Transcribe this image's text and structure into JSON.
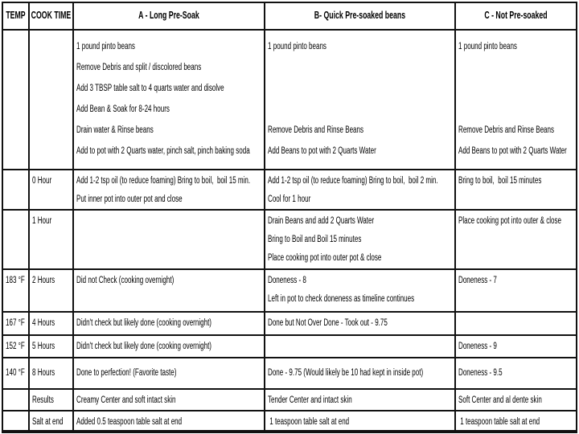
{
  "colors": {
    "border": "#111111",
    "background": "#ffffff",
    "text": "#000000"
  },
  "table": {
    "headers": {
      "temp": "TEMP",
      "cook_time": "COOK TIME",
      "col_a": "A - Long Pre-Soak",
      "col_b": "B- Quick Pre-soaked beans",
      "col_c": "C - Not Pre-soaked"
    },
    "rows": [
      {
        "temp": "",
        "time": "",
        "a": [
          "1 pound pinto beans",
          "Remove Debris and split / discolored beans",
          "Add 3 TBSP table salt to 4 quarts water and disolve",
          "Add Bean & Soak for 8-24 hours",
          "Drain water & Rinse beans",
          "Add to pot with 2 Quarts water, pinch salt, pinch baking soda"
        ],
        "b": [
          "1 pound pinto beans",
          "",
          "",
          "",
          "Remove Debris and Rinse Beans",
          "Add Beans to pot with 2 Quarts Water"
        ],
        "c": [
          "1 pound pinto beans",
          "",
          "",
          "",
          "Remove Debris and Rinse Beans",
          "Add Beans to pot with 2 Quarts Water"
        ]
      },
      {
        "temp": "",
        "time": "0 Hour",
        "a": [
          "Add 1-2 tsp oil (to reduce foaming) Bring to boil,  boil 15 min.",
          "Put inner pot into outer pot and close"
        ],
        "b": [
          "Add 1-2 tsp oil (to reduce foaming) Bring to boil,  boil 2 min.",
          "Cool for 1 hour"
        ],
        "c": [
          "Bring to boil,  boil 15 minutes"
        ]
      },
      {
        "temp": "",
        "time": "1 Hour",
        "a": [
          ""
        ],
        "b": [
          "Drain Beans and add 2 Quarts Water",
          "Bring to Boil and Boil 15 minutes",
          "Place cooking pot into outer pot & close"
        ],
        "c": [
          "Place cooking pot into outer & close"
        ]
      },
      {
        "temp": "183 °F",
        "time": "2 Hours",
        "a": [
          "Did not Check (cooking overnight)"
        ],
        "b": [
          "Doneness - 8",
          "Left in pot to check doneness as timeline continues"
        ],
        "c": [
          "Doneness - 7"
        ]
      },
      {
        "temp": "167 °F",
        "time": "4 Hours",
        "a": [
          "Didn't check but likely done (cooking overnight)"
        ],
        "b": [
          "Done but Not Over Done - Took out - 9.75"
        ],
        "c": [
          ""
        ]
      },
      {
        "temp": "152 °F",
        "time": "5 Hours",
        "a": [
          "Didn't check but likely done (cooking overnight)"
        ],
        "b": [
          ""
        ],
        "c": [
          "Doneness - 9"
        ]
      },
      {
        "temp": "140 °F",
        "time": "8 Hours",
        "a": [
          "Done to perfection! (Favorite taste)"
        ],
        "b": [
          "Done - 9.75 (Would likely be 10 had kept in inside pot)"
        ],
        "c": [
          "Doneness - 9.5"
        ]
      },
      {
        "temp": "",
        "time": "Results",
        "a": [
          "Creamy Center and soft intact skin"
        ],
        "b": [
          "Tender Center and intact skin"
        ],
        "c": [
          "Soft Center and al dente skin"
        ]
      },
      {
        "temp": "",
        "time": "Salt at end",
        "a": [
          "Added 0.5 teaspoon table salt at end"
        ],
        "b": [
          " 1 teaspoon table salt at end"
        ],
        "c": [
          " 1 teaspoon table salt at end"
        ]
      }
    ]
  }
}
